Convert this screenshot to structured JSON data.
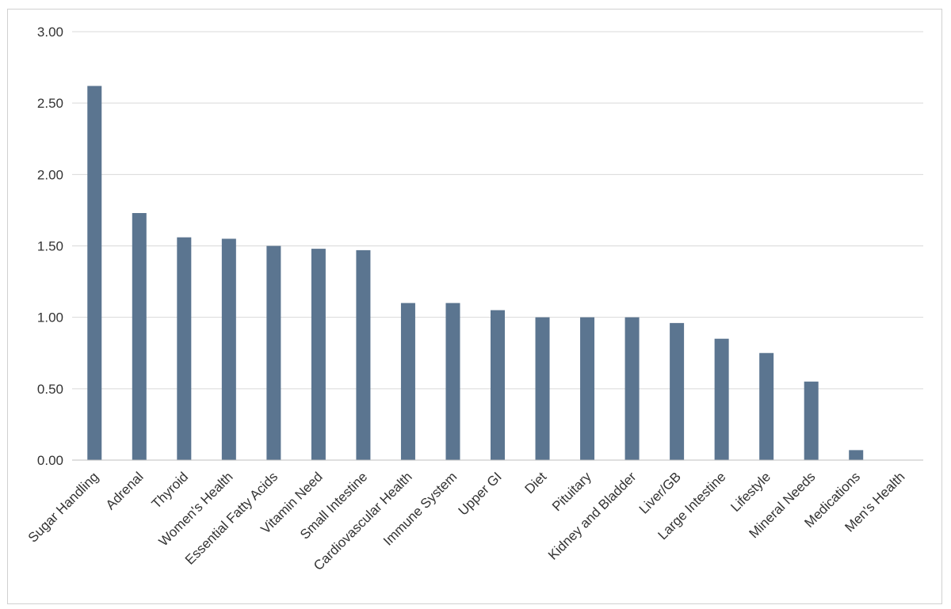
{
  "chart_data": {
    "type": "bar",
    "title": "",
    "xlabel": "",
    "ylabel": "",
    "ylim": [
      0,
      3
    ],
    "yticks": [
      "0.00",
      "0.50",
      "1.00",
      "1.50",
      "2.00",
      "2.50",
      "3.00"
    ],
    "grid": true,
    "legend": "none",
    "bar_color": "#5b7590",
    "categories": [
      "Sugar Handling",
      "Adrenal",
      "Thyroid",
      "Women's Health",
      "Essential Fatty Acids",
      "Vitamin Need",
      "Small Intestine",
      "Cardiovascular Health",
      "Immune System",
      "Upper GI",
      "Diet",
      "Pituitary",
      "Kidney and Bladder",
      "Liver/GB",
      "Large Intestine",
      "Lifestyle",
      "Mineral Needs",
      "Medications",
      "Men's Health"
    ],
    "values": [
      2.62,
      1.73,
      1.56,
      1.55,
      1.5,
      1.48,
      1.47,
      1.1,
      1.1,
      1.05,
      1.0,
      1.0,
      1.0,
      0.96,
      0.85,
      0.75,
      0.55,
      0.07,
      0.0
    ]
  }
}
